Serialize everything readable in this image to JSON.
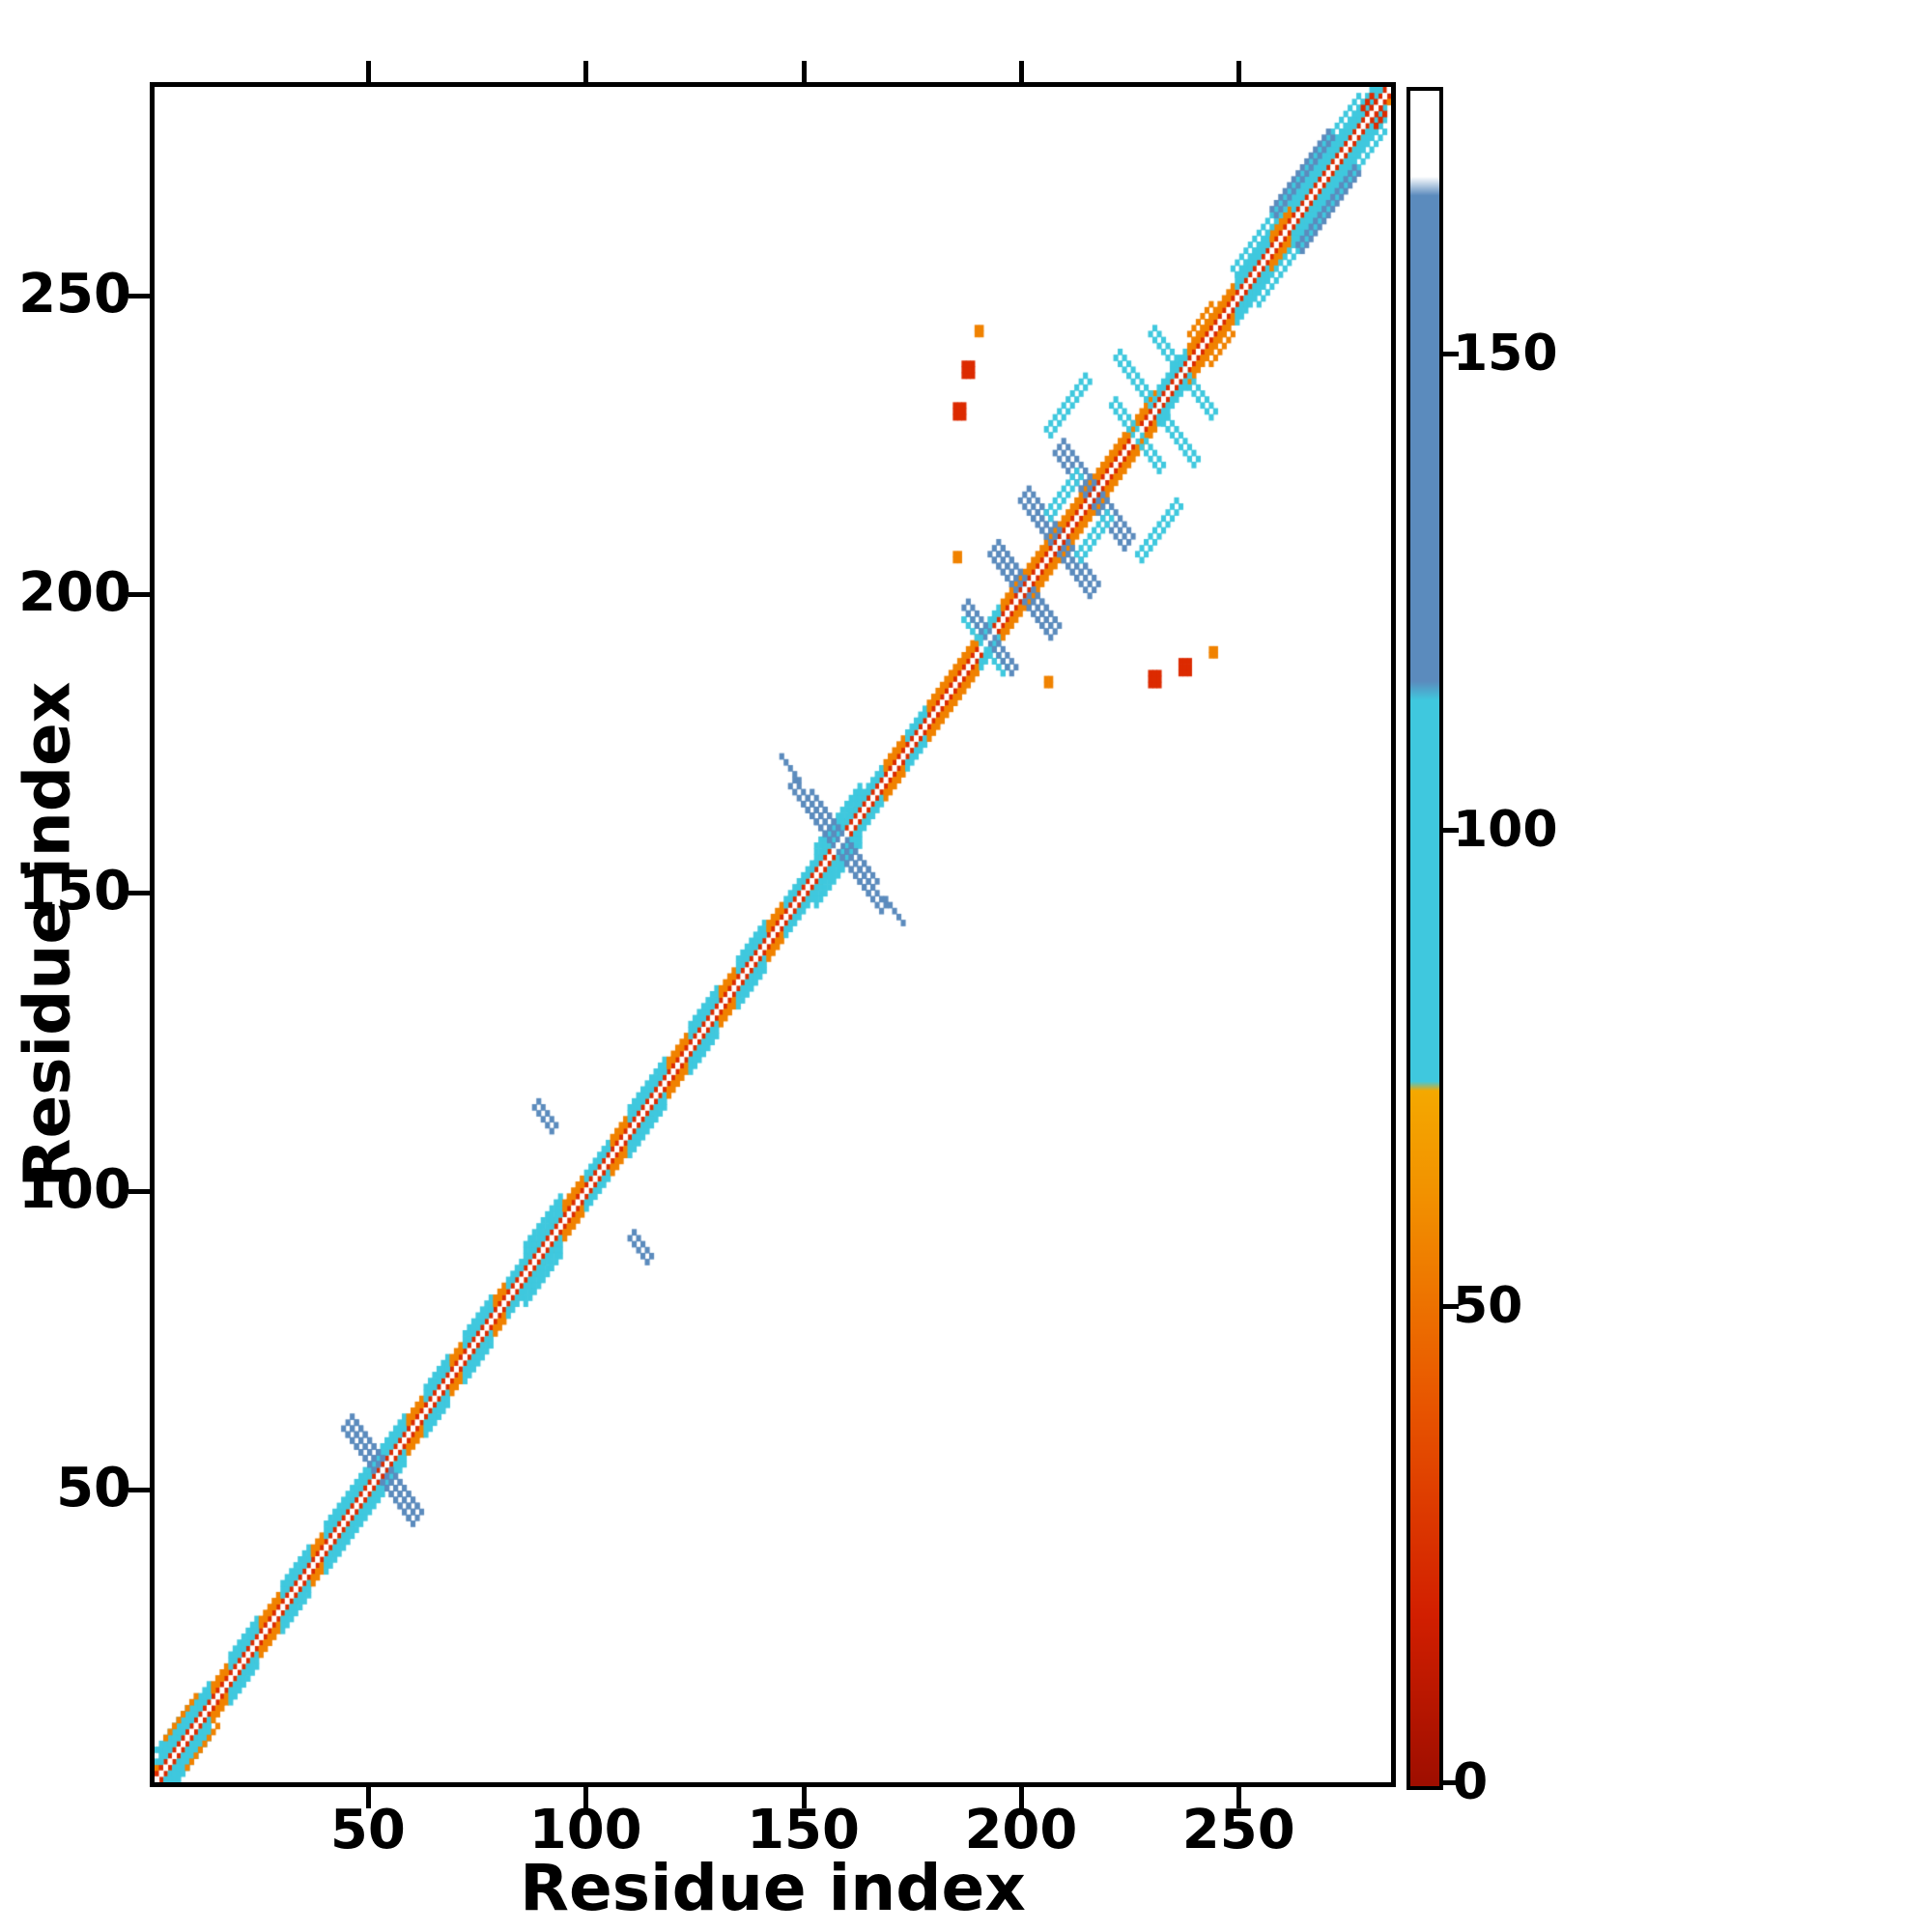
{
  "figure": {
    "background": "#ffffff"
  },
  "chart_data": {
    "type": "heatmap",
    "title": "",
    "xlabel": "Residue index",
    "ylabel": "Residue index",
    "x_range": [
      1,
      285
    ],
    "y_range": [
      1,
      285
    ],
    "x_ticks": [
      50,
      100,
      150,
      200,
      250
    ],
    "y_ticks": [
      50,
      100,
      150,
      200,
      250
    ],
    "grid": false,
    "background_value_color": "#ffffff",
    "palette": {
      "red": "#dc2a00",
      "dark_red": "#a81200",
      "orange": "#f08200",
      "cyan": "#3fc8de",
      "blue": "#5b8bbd",
      "white": "#ffffff"
    },
    "colorbar": {
      "range": [
        0,
        178
      ],
      "ticks": [
        0,
        50,
        100,
        150
      ],
      "stops": [
        {
          "v": 0,
          "c": "#9e0e00"
        },
        {
          "v": 18,
          "c": "#d21f00"
        },
        {
          "v": 40,
          "c": "#e85500"
        },
        {
          "v": 62,
          "c": "#f29100"
        },
        {
          "v": 73,
          "c": "#f4a800"
        },
        {
          "v": 74,
          "c": "#3fc8de"
        },
        {
          "v": 114,
          "c": "#3fc8de"
        },
        {
          "v": 116,
          "c": "#5b8bbd"
        },
        {
          "v": 167,
          "c": "#5b8bbd"
        },
        {
          "v": 169,
          "c": "#ffffff"
        },
        {
          "v": 178,
          "c": "#ffffff"
        }
      ]
    },
    "diagonal_band": {
      "offset1_color": "red",
      "offset2_color": "orange",
      "diagonal_color": "white"
    },
    "diagonal_patches": [
      {
        "from": 2,
        "to": 13,
        "width": 4,
        "color": "cyan"
      },
      {
        "from": 14,
        "to": 17,
        "width": 3,
        "color": "orange"
      },
      {
        "from": 18,
        "to": 24,
        "width": 4,
        "color": "cyan"
      },
      {
        "from": 25,
        "to": 29,
        "width": 3,
        "color": "orange"
      },
      {
        "from": 30,
        "to": 36,
        "width": 4,
        "color": "cyan"
      },
      {
        "from": 37,
        "to": 39,
        "width": 3,
        "color": "orange"
      },
      {
        "from": 40,
        "to": 47,
        "width": 4,
        "color": "cyan"
      },
      {
        "from": 48,
        "to": 58,
        "width": 4,
        "color": "cyan"
      },
      {
        "from": 59,
        "to": 62,
        "width": 3,
        "color": "orange"
      },
      {
        "from": 63,
        "to": 68,
        "width": 4,
        "color": "cyan"
      },
      {
        "from": 69,
        "to": 71,
        "width": 3,
        "color": "orange"
      },
      {
        "from": 72,
        "to": 78,
        "width": 4,
        "color": "cyan"
      },
      {
        "from": 79,
        "to": 81,
        "width": 3,
        "color": "orange"
      },
      {
        "from": 82,
        "to": 85,
        "width": 3,
        "color": "cyan"
      },
      {
        "from": 86,
        "to": 94,
        "width": 5,
        "color": "cyan"
      },
      {
        "from": 95,
        "to": 99,
        "width": 3,
        "color": "orange"
      },
      {
        "from": 100,
        "to": 105,
        "width": 3,
        "color": "cyan"
      },
      {
        "from": 106,
        "to": 109,
        "width": 3,
        "color": "orange"
      },
      {
        "from": 110,
        "to": 118,
        "width": 4,
        "color": "cyan"
      },
      {
        "from": 119,
        "to": 123,
        "width": 3,
        "color": "orange"
      },
      {
        "from": 124,
        "to": 130,
        "width": 4,
        "color": "cyan"
      },
      {
        "from": 131,
        "to": 134,
        "width": 3,
        "color": "orange"
      },
      {
        "from": 135,
        "to": 141,
        "width": 4,
        "color": "cyan"
      },
      {
        "from": 142,
        "to": 145,
        "width": 3,
        "color": "orange"
      },
      {
        "from": 146,
        "to": 152,
        "width": 3,
        "color": "cyan"
      },
      {
        "from": 153,
        "to": 163,
        "width": 5,
        "color": "cyan"
      },
      {
        "from": 164,
        "to": 168,
        "width": 3,
        "color": "cyan"
      },
      {
        "from": 169,
        "to": 173,
        "width": 3,
        "color": "orange"
      },
      {
        "from": 174,
        "to": 178,
        "width": 3,
        "color": "cyan"
      },
      {
        "from": 179,
        "to": 190,
        "width": 3,
        "color": "orange"
      },
      {
        "from": 191,
        "to": 195,
        "width": 3,
        "color": "cyan"
      },
      {
        "from": 196,
        "to": 215,
        "width": 3,
        "color": "orange"
      },
      {
        "from": 216,
        "to": 231,
        "width": 3,
        "color": "orange"
      },
      {
        "from": 232,
        "to": 238,
        "width": 3,
        "color": "cyan"
      },
      {
        "from": 239,
        "to": 249,
        "width": 3,
        "color": "orange"
      },
      {
        "from": 250,
        "to": 257,
        "width": 4,
        "color": "cyan"
      },
      {
        "from": 258,
        "to": 262,
        "width": 3,
        "color": "orange"
      },
      {
        "from": 263,
        "to": 284,
        "width": 4,
        "color": "cyan"
      }
    ],
    "off_diagonal_features": [
      {
        "cx": 54,
        "cy": 52,
        "len": 16,
        "w": 3,
        "orient": "perp",
        "color": "blue"
      },
      {
        "cx": 113,
        "cy": 91,
        "len": 5,
        "w": 2,
        "orient": "perp",
        "color": "blue"
      },
      {
        "cx": 160,
        "cy": 157,
        "len": 14,
        "w": 3,
        "orient": "perp",
        "color": "blue"
      },
      {
        "cx": 166,
        "cy": 151,
        "len": 7,
        "w": 2,
        "orient": "perp",
        "color": "blue"
      },
      {
        "cx": 171,
        "cy": 147,
        "len": 5,
        "w": 1,
        "orient": "perp",
        "color": "blue"
      },
      {
        "cx": 193,
        "cy": 192,
        "len": 10,
        "w": 2,
        "orient": "perp",
        "color": "cyan"
      },
      {
        "cx": 197,
        "cy": 190,
        "len": 6,
        "w": 2,
        "orient": "perp",
        "color": "blue"
      },
      {
        "cx": 202,
        "cy": 200,
        "len": 14,
        "w": 3,
        "orient": "perp",
        "color": "blue"
      },
      {
        "cx": 211,
        "cy": 207,
        "len": 14,
        "w": 3,
        "orient": "perp",
        "color": "blue"
      },
      {
        "cx": 220,
        "cy": 214,
        "len": 12,
        "w": 3,
        "orient": "perp",
        "color": "blue"
      },
      {
        "cx": 218,
        "cy": 210,
        "len": 8,
        "w": 2,
        "orient": "para",
        "color": "cyan"
      },
      {
        "cx": 233,
        "cy": 211,
        "len": 10,
        "w": 2,
        "orient": "para",
        "color": "cyan"
      },
      {
        "cx": 236,
        "cy": 228,
        "len": 12,
        "w": 2,
        "orient": "perp",
        "color": "cyan"
      },
      {
        "cx": 242,
        "cy": 234,
        "len": 8,
        "w": 2,
        "orient": "perp",
        "color": "cyan"
      },
      {
        "cx": 231,
        "cy": 224,
        "len": 6,
        "w": 2,
        "orient": "perp",
        "color": "cyan"
      },
      {
        "cx": 231,
        "cy": 186,
        "len": 3,
        "w": 3,
        "orient": "blob",
        "color": "red"
      },
      {
        "cx": 238,
        "cy": 188,
        "len": 3,
        "w": 3,
        "orient": "blob",
        "color": "red"
      },
      {
        "cx": 245,
        "cy": 191,
        "len": 2,
        "w": 2,
        "orient": "blob",
        "color": "orange"
      },
      {
        "cx": 207,
        "cy": 186,
        "len": 2,
        "w": 2,
        "orient": "blob",
        "color": "orange"
      },
      {
        "cx": 270,
        "cy": 264,
        "len": 30,
        "w": 2,
        "orient": "para",
        "color": "cyan"
      },
      {
        "cx": 272,
        "cy": 265,
        "len": 14,
        "w": 2,
        "orient": "para",
        "color": "blue"
      },
      {
        "cx": 247,
        "cy": 242,
        "len": 6,
        "w": 2,
        "orient": "para",
        "color": "orange"
      },
      {
        "cx": 9,
        "cy": 4,
        "len": 10,
        "w": 2,
        "orient": "para",
        "color": "cyan"
      },
      {
        "cx": 12,
        "cy": 7,
        "len": 8,
        "w": 1,
        "orient": "para",
        "color": "orange"
      },
      {
        "cx": 283,
        "cy": 280,
        "len": 3,
        "w": 2,
        "orient": "para",
        "color": "red"
      }
    ]
  }
}
